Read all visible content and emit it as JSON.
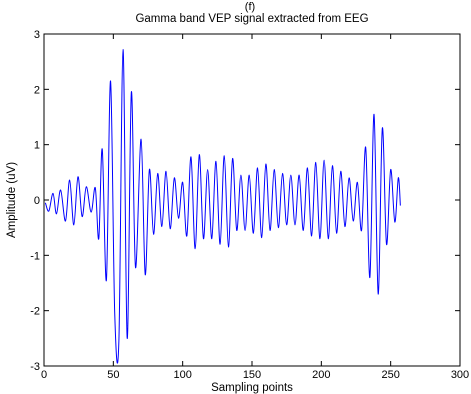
{
  "figure": {
    "panel_label": "(f)"
  },
  "chart_data": {
    "type": "line",
    "title": "Gamma band VEP signal extracted from EEG",
    "xlabel": "Sampling points",
    "ylabel": "Amplitude (uV)",
    "xlim": [
      0,
      300
    ],
    "ylim": [
      -3,
      3
    ],
    "xticks": [
      0,
      50,
      100,
      150,
      200,
      250,
      300
    ],
    "yticks": [
      -3,
      -2,
      -1,
      0,
      1,
      2,
      3
    ],
    "xtick_labels": [
      "0",
      "50",
      "100",
      "150",
      "200",
      "250",
      "300"
    ],
    "ytick_labels": [
      "-3",
      "-2",
      "-1",
      "0",
      "1",
      "2",
      "3"
    ],
    "grid": false,
    "legend": null,
    "series": [
      {
        "color": "#0000ff",
        "points": [
          [
            1,
            -0.05
          ],
          [
            3.5,
            -0.2
          ],
          [
            6.5,
            0.12
          ],
          [
            9,
            -0.25
          ],
          [
            12,
            0.18
          ],
          [
            15.5,
            -0.38
          ],
          [
            18.5,
            0.36
          ],
          [
            21.5,
            -0.45
          ],
          [
            24.5,
            0.42
          ],
          [
            27.5,
            -0.3
          ],
          [
            30.5,
            0.24
          ],
          [
            34,
            -0.22
          ],
          [
            37,
            0.22
          ],
          [
            39.5,
            -0.7
          ],
          [
            42,
            0.92
          ],
          [
            45,
            -1.45
          ],
          [
            48,
            2.15
          ],
          [
            51,
            -2.05
          ],
          [
            54,
            -2.55
          ],
          [
            57,
            2.72
          ],
          [
            60,
            -2.5
          ],
          [
            63,
            1.95
          ],
          [
            66,
            -1.22
          ],
          [
            70,
            1.1
          ],
          [
            73,
            -1.35
          ],
          [
            76,
            0.55
          ],
          [
            79,
            -0.62
          ],
          [
            82,
            0.48
          ],
          [
            85,
            -0.48
          ],
          [
            88,
            0.52
          ],
          [
            91,
            -0.52
          ],
          [
            94,
            0.4
          ],
          [
            97,
            -0.33
          ],
          [
            100,
            0.32
          ],
          [
            103,
            -0.65
          ],
          [
            106,
            0.78
          ],
          [
            109,
            -0.88
          ],
          [
            112,
            0.82
          ],
          [
            115,
            -0.7
          ],
          [
            118,
            0.55
          ],
          [
            121,
            -0.7
          ],
          [
            124,
            0.7
          ],
          [
            127,
            -0.8
          ],
          [
            130,
            0.8
          ],
          [
            133,
            -0.85
          ],
          [
            136,
            0.75
          ],
          [
            139,
            -0.55
          ],
          [
            142,
            0.45
          ],
          [
            145,
            -0.55
          ],
          [
            148,
            0.45
          ],
          [
            151,
            -0.6
          ],
          [
            154,
            0.58
          ],
          [
            157,
            -0.68
          ],
          [
            160,
            0.65
          ],
          [
            163,
            -0.55
          ],
          [
            166,
            0.55
          ],
          [
            169,
            -0.5
          ],
          [
            172,
            0.48
          ],
          [
            175,
            -0.45
          ],
          [
            178,
            0.45
          ],
          [
            181,
            -0.45
          ],
          [
            184,
            0.45
          ],
          [
            187,
            -0.55
          ],
          [
            190,
            0.58
          ],
          [
            193,
            -0.65
          ],
          [
            196,
            0.68
          ],
          [
            199,
            -0.7
          ],
          [
            202,
            0.72
          ],
          [
            205,
            -0.7
          ],
          [
            208,
            0.62
          ],
          [
            211,
            -0.6
          ],
          [
            214,
            0.52
          ],
          [
            217,
            -0.48
          ],
          [
            220,
            0.4
          ],
          [
            223,
            -0.38
          ],
          [
            226,
            0.32
          ],
          [
            229,
            -0.55
          ],
          [
            232,
            0.95
          ],
          [
            235,
            -1.4
          ],
          [
            238,
            1.55
          ],
          [
            241,
            -1.7
          ],
          [
            244,
            1.3
          ],
          [
            247,
            -0.8
          ],
          [
            250,
            0.55
          ],
          [
            253,
            -0.4
          ],
          [
            255.5,
            0.4
          ],
          [
            257,
            -0.1
          ]
        ]
      }
    ]
  }
}
